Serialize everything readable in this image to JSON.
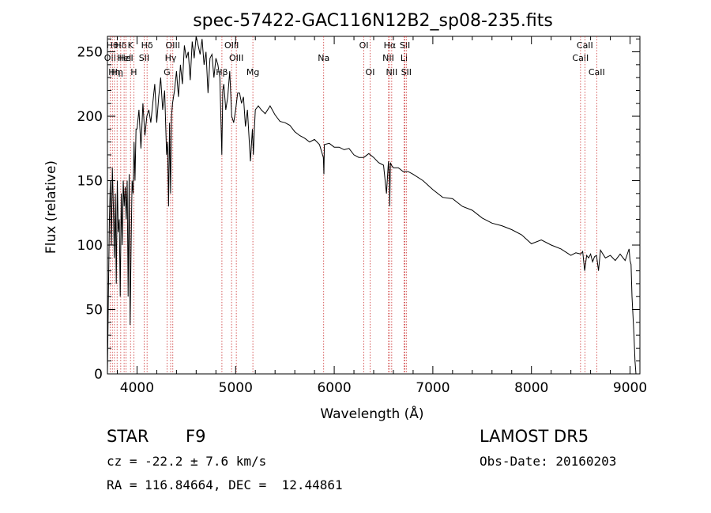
{
  "chart_data": {
    "type": "line",
    "title": "spec-57422-GAC116N12B2_sp08-235.fits",
    "xlabel": "Wavelength (Å)",
    "ylabel": "Flux (relative)",
    "xlim": [
      3700,
      9100
    ],
    "ylim": [
      0,
      262
    ],
    "xticks": [
      4000,
      5000,
      6000,
      7000,
      8000,
      9000
    ],
    "yticks": [
      0,
      50,
      100,
      150,
      200,
      250
    ],
    "grid": false,
    "line_color": "#000000",
    "marker_color": "#cc3333",
    "series": [
      {
        "x": [
          3700,
          3710,
          3720,
          3730,
          3740,
          3750,
          3760,
          3770,
          3780,
          3790,
          3800,
          3810,
          3820,
          3830,
          3840,
          3850,
          3860,
          3870,
          3880,
          3890,
          3900,
          3910,
          3920,
          3930,
          3940,
          3950,
          3960,
          3970,
          3980,
          3990,
          4000,
          4020,
          4040,
          4060,
          4080,
          4100,
          4120,
          4140,
          4160,
          4180,
          4200,
          4220,
          4240,
          4260,
          4280,
          4300,
          4310,
          4320,
          4330,
          4340,
          4350,
          4360,
          4380,
          4400,
          4420,
          4440,
          4460,
          4480,
          4500,
          4520,
          4540,
          4560,
          4580,
          4600,
          4620,
          4640,
          4660,
          4680,
          4700,
          4720,
          4740,
          4760,
          4780,
          4800,
          4820,
          4840,
          4860,
          4870,
          4880,
          4900,
          4920,
          4940,
          4960,
          4980,
          5000,
          5020,
          5040,
          5060,
          5080,
          5100,
          5120,
          5150,
          5170,
          5180,
          5190,
          5200,
          5230,
          5260,
          5300,
          5350,
          5400,
          5450,
          5500,
          5550,
          5600,
          5650,
          5700,
          5750,
          5800,
          5850,
          5890,
          5895,
          5900,
          5950,
          6000,
          6050,
          6100,
          6150,
          6200,
          6250,
          6300,
          6350,
          6400,
          6450,
          6500,
          6530,
          6550,
          6560,
          6563,
          6570,
          6580,
          6600,
          6650,
          6700,
          6750,
          6800,
          6900,
          7000,
          7100,
          7200,
          7300,
          7400,
          7500,
          7600,
          7700,
          7800,
          7900,
          8000,
          8100,
          8200,
          8300,
          8400,
          8450,
          8500,
          8520,
          8540,
          8560,
          8580,
          8600,
          8620,
          8640,
          8660,
          8680,
          8700,
          8750,
          8800,
          8850,
          8900,
          8950,
          8990,
          9000,
          9010,
          9020,
          9040,
          9050,
          9060
        ],
        "y": [
          0,
          60,
          120,
          150,
          100,
          160,
          130,
          90,
          140,
          70,
          150,
          110,
          120,
          60,
          140,
          100,
          150,
          130,
          145,
          120,
          150,
          60,
          155,
          38,
          100,
          150,
          140,
          180,
          150,
          190,
          190,
          205,
          175,
          210,
          185,
          200,
          205,
          195,
          210,
          225,
          195,
          215,
          230,
          205,
          220,
          170,
          180,
          130,
          195,
          140,
          200,
          210,
          220,
          235,
          215,
          240,
          225,
          255,
          245,
          250,
          228,
          258,
          245,
          262,
          255,
          248,
          260,
          240,
          250,
          218,
          245,
          248,
          230,
          245,
          240,
          230,
          170,
          220,
          225,
          205,
          215,
          235,
          200,
          195,
          205,
          218,
          218,
          210,
          215,
          192,
          205,
          165,
          190,
          170,
          190,
          205,
          208,
          205,
          202,
          208,
          201,
          196,
          195,
          193,
          188,
          185,
          183,
          180,
          182,
          178,
          168,
          155,
          178,
          179,
          176,
          176,
          174,
          175,
          170,
          168,
          168,
          171,
          168,
          164,
          162,
          140,
          165,
          150,
          130,
          164,
          162,
          160,
          160,
          157,
          157,
          155,
          150,
          143,
          137,
          136,
          130,
          127,
          121,
          117,
          115,
          112,
          108,
          101,
          104,
          100,
          97,
          92,
          94,
          93,
          95,
          80,
          92,
          90,
          93,
          87,
          91,
          92,
          80,
          96,
          90,
          92,
          88,
          93,
          88,
          97,
          88,
          85,
          60,
          30,
          10,
          0
        ]
      }
    ],
    "line_markers": [
      {
        "x": 3727,
        "label": "OII",
        "row": 2
      },
      {
        "x": 3750,
        "label": "Hθ",
        "row": 1
      },
      {
        "x": 3771,
        "label": "Hη",
        "row": 3
      },
      {
        "x": 3798,
        "label": "Hη",
        "row": 3
      },
      {
        "x": 3835,
        "label": "Hδ",
        "row": 1
      },
      {
        "x": 3869,
        "label": "HeI",
        "row": 2
      },
      {
        "x": 3889,
        "label": "HeI",
        "row": 2
      },
      {
        "x": 3934,
        "label": "K",
        "row": 1
      },
      {
        "x": 3968,
        "label": "H",
        "row": 3
      },
      {
        "x": 4072,
        "label": "SII",
        "row": 2
      },
      {
        "x": 4102,
        "label": "Hδ",
        "row": 1
      },
      {
        "x": 4304,
        "label": "G",
        "row": 3
      },
      {
        "x": 4341,
        "label": "Hγ",
        "row": 2
      },
      {
        "x": 4363,
        "label": "OIII",
        "row": 1
      },
      {
        "x": 4861,
        "label": "Hβ",
        "row": 3
      },
      {
        "x": 4959,
        "label": "OIII",
        "row": 1
      },
      {
        "x": 5007,
        "label": "OIII",
        "row": 2
      },
      {
        "x": 5175,
        "label": "Mg",
        "row": 3
      },
      {
        "x": 5893,
        "label": "Na",
        "row": 2
      },
      {
        "x": 6300,
        "label": "OI",
        "row": 1
      },
      {
        "x": 6364,
        "label": "OI",
        "row": 3
      },
      {
        "x": 6548,
        "label": "NII",
        "row": 2
      },
      {
        "x": 6563,
        "label": "Hα",
        "row": 1
      },
      {
        "x": 6583,
        "label": "NII",
        "row": 3
      },
      {
        "x": 6708,
        "label": "Li",
        "row": 2
      },
      {
        "x": 6717,
        "label": "SII",
        "row": 1
      },
      {
        "x": 6731,
        "label": "SII",
        "row": 3
      },
      {
        "x": 8498,
        "label": "CaII",
        "row": 2
      },
      {
        "x": 8542,
        "label": "CaII",
        "row": 1
      },
      {
        "x": 8662,
        "label": "CaII",
        "row": 3
      }
    ]
  },
  "info": {
    "class_label": "STAR",
    "subclass": "F9",
    "survey": "LAMOST DR5",
    "cz_line": "cz = -22.2 ± 7.6 km/s",
    "obs_date": "Obs-Date: 20160203",
    "radec": "RA = 116.84664, DEC =  12.44861"
  }
}
